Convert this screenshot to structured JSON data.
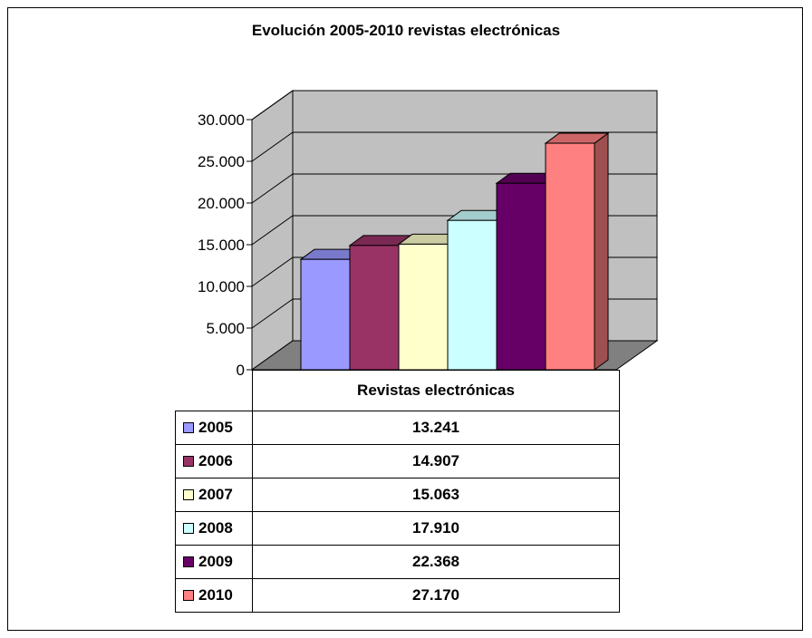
{
  "chart_data": {
    "type": "bar",
    "title": "Evolución 2005-2010 revistas electrónicas",
    "categories": [
      "2005",
      "2006",
      "2007",
      "2008",
      "2009",
      "2010"
    ],
    "series": [
      {
        "name": "Revistas electrónicas",
        "values": [
          13241,
          14907,
          15063,
          17910,
          22368,
          27170
        ]
      }
    ],
    "value_labels": [
      "13.241",
      "14.907",
      "15.063",
      "17.910",
      "22.368",
      "27.170"
    ],
    "colors": [
      "#9999FF",
      "#993366",
      "#FFFFCC",
      "#CCFFFF",
      "#660066",
      "#FF8080"
    ],
    "ylim": [
      0,
      30000
    ],
    "yticks": [
      "0",
      "5.000",
      "10.000",
      "15.000",
      "20.000",
      "25.000",
      "30.000"
    ],
    "grid": true,
    "legend": "data-table",
    "three_d": true,
    "wall_color": "#C0C0C0",
    "floor_color": "#808080"
  }
}
